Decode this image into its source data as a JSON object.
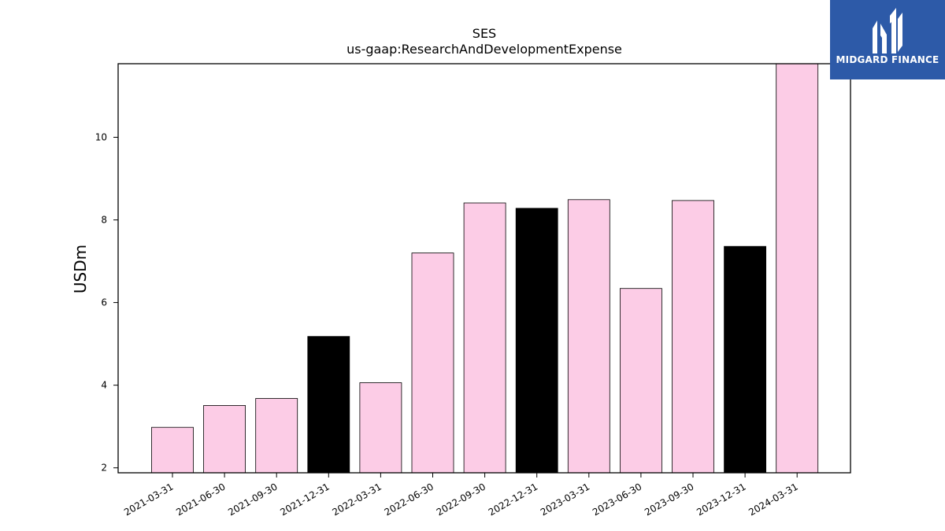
{
  "chart_data": {
    "type": "bar",
    "title": "SES",
    "subtitle": "us-gaap:ResearchAndDevelopmentExpense",
    "xlabel": "",
    "ylabel": "USDm",
    "categories": [
      "2021-03-31",
      "2021-06-30",
      "2021-09-30",
      "2021-12-31",
      "2022-03-31",
      "2022-06-30",
      "2022-09-30",
      "2022-12-31",
      "2023-03-31",
      "2023-06-30",
      "2023-09-30",
      "2023-12-31",
      "2024-03-31"
    ],
    "values": [
      2.98,
      3.51,
      3.68,
      5.18,
      4.06,
      7.2,
      8.41,
      8.28,
      8.49,
      6.34,
      8.47,
      7.36,
      11.8
    ],
    "bar_colors": [
      "#fccce6",
      "#fccce6",
      "#fccce6",
      "#000000",
      "#fccce6",
      "#fccce6",
      "#fccce6",
      "#000000",
      "#fccce6",
      "#fccce6",
      "#fccce6",
      "#000000",
      "#fccce6"
    ],
    "ylim": [
      1.88,
      11.78
    ],
    "yticks": [
      2,
      4,
      6,
      8,
      10
    ],
    "grid": false,
    "legend": "none"
  },
  "brand": {
    "name": "MIDGARD FINANCE",
    "color": "#2d5aa8"
  }
}
